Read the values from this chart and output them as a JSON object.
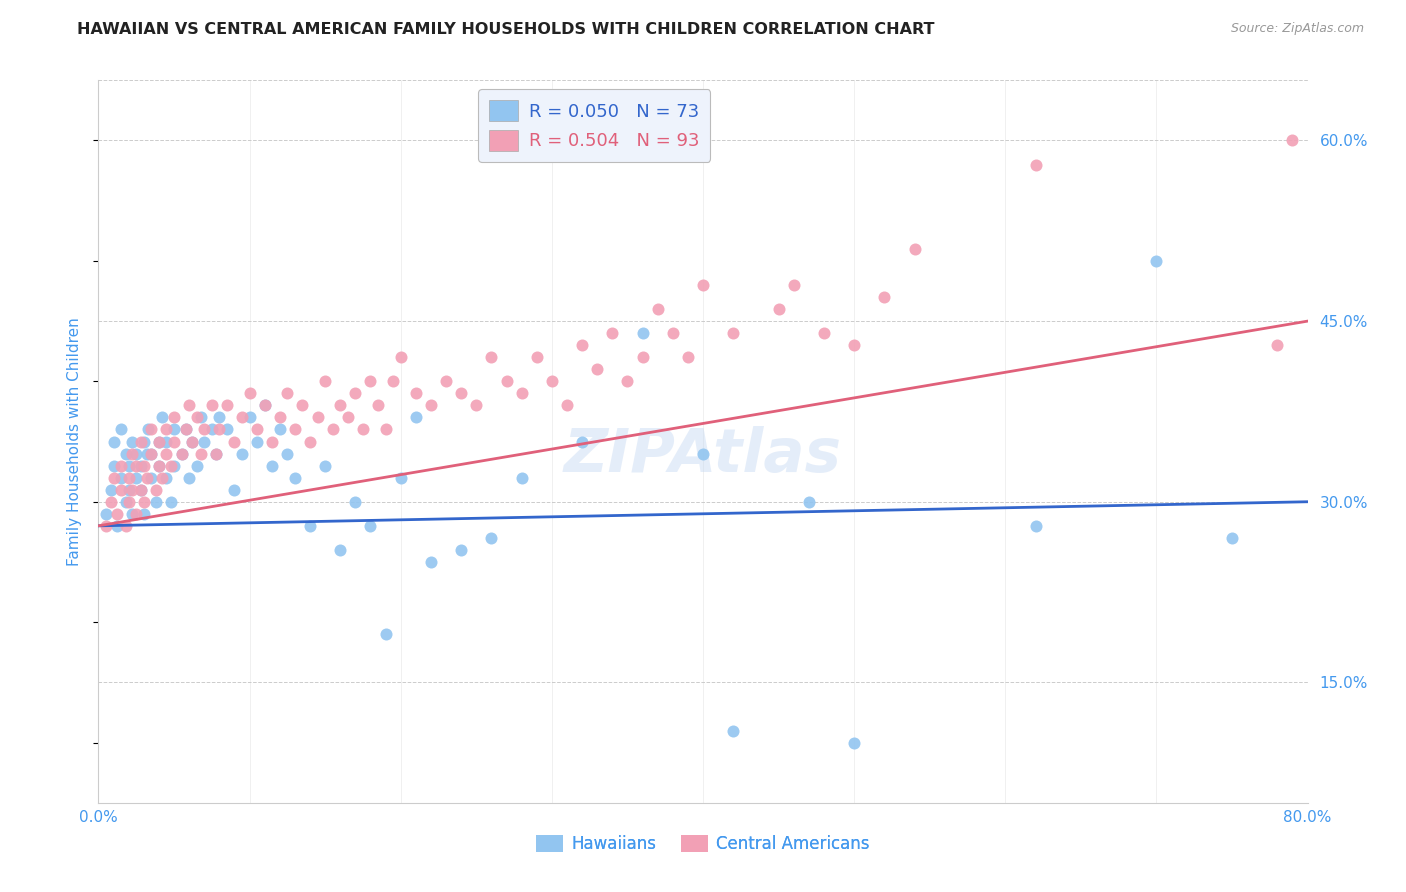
{
  "title": "HAWAIIAN VS CENTRAL AMERICAN FAMILY HOUSEHOLDS WITH CHILDREN CORRELATION CHART",
  "source": "Source: ZipAtlas.com",
  "ylabel": "Family Households with Children",
  "xlim": [
    0.0,
    0.8
  ],
  "ylim": [
    0.05,
    0.65
  ],
  "xticks": [
    0.0,
    0.1,
    0.2,
    0.3,
    0.4,
    0.5,
    0.6,
    0.7,
    0.8
  ],
  "yticks_right": [
    0.15,
    0.3,
    0.45,
    0.6
  ],
  "ytick_labels_right": [
    "15.0%",
    "30.0%",
    "45.0%",
    "60.0%"
  ],
  "xtick_labels": [
    "0.0%",
    "",
    "",
    "",
    "",
    "",
    "",
    "",
    "80.0%"
  ],
  "hawaiian_R": 0.05,
  "hawaiian_N": 73,
  "central_R": 0.504,
  "central_N": 93,
  "hawaiian_color": "#92C5F0",
  "central_color": "#F2A0B5",
  "hawaiian_line_color": "#3366CC",
  "central_line_color": "#E0607A",
  "grid_color": "#CCCCCC",
  "axis_color": "#4499EE",
  "hawaiian_x": [
    0.005,
    0.008,
    0.01,
    0.01,
    0.012,
    0.015,
    0.015,
    0.018,
    0.018,
    0.02,
    0.02,
    0.022,
    0.022,
    0.025,
    0.025,
    0.028,
    0.028,
    0.03,
    0.03,
    0.032,
    0.033,
    0.035,
    0.035,
    0.038,
    0.04,
    0.04,
    0.042,
    0.045,
    0.045,
    0.048,
    0.05,
    0.05,
    0.055,
    0.058,
    0.06,
    0.062,
    0.065,
    0.068,
    0.07,
    0.075,
    0.078,
    0.08,
    0.085,
    0.09,
    0.095,
    0.1,
    0.105,
    0.11,
    0.115,
    0.12,
    0.125,
    0.13,
    0.14,
    0.15,
    0.16,
    0.17,
    0.18,
    0.19,
    0.2,
    0.21,
    0.22,
    0.24,
    0.26,
    0.28,
    0.32,
    0.36,
    0.4,
    0.42,
    0.47,
    0.5,
    0.62,
    0.7,
    0.75
  ],
  "hawaiian_y": [
    0.29,
    0.31,
    0.33,
    0.35,
    0.28,
    0.32,
    0.36,
    0.3,
    0.34,
    0.31,
    0.33,
    0.35,
    0.29,
    0.32,
    0.34,
    0.31,
    0.33,
    0.35,
    0.29,
    0.34,
    0.36,
    0.32,
    0.34,
    0.3,
    0.33,
    0.35,
    0.37,
    0.32,
    0.35,
    0.3,
    0.33,
    0.36,
    0.34,
    0.36,
    0.32,
    0.35,
    0.33,
    0.37,
    0.35,
    0.36,
    0.34,
    0.37,
    0.36,
    0.31,
    0.34,
    0.37,
    0.35,
    0.38,
    0.33,
    0.36,
    0.34,
    0.32,
    0.28,
    0.33,
    0.26,
    0.3,
    0.28,
    0.19,
    0.32,
    0.37,
    0.25,
    0.26,
    0.27,
    0.32,
    0.35,
    0.44,
    0.34,
    0.11,
    0.3,
    0.1,
    0.28,
    0.5,
    0.27
  ],
  "central_x": [
    0.005,
    0.008,
    0.01,
    0.012,
    0.015,
    0.015,
    0.018,
    0.02,
    0.02,
    0.022,
    0.022,
    0.025,
    0.025,
    0.028,
    0.028,
    0.03,
    0.03,
    0.032,
    0.035,
    0.035,
    0.038,
    0.04,
    0.04,
    0.042,
    0.045,
    0.045,
    0.048,
    0.05,
    0.05,
    0.055,
    0.058,
    0.06,
    0.062,
    0.065,
    0.068,
    0.07,
    0.075,
    0.078,
    0.08,
    0.085,
    0.09,
    0.095,
    0.1,
    0.105,
    0.11,
    0.115,
    0.12,
    0.125,
    0.13,
    0.135,
    0.14,
    0.145,
    0.15,
    0.155,
    0.16,
    0.165,
    0.17,
    0.175,
    0.18,
    0.185,
    0.19,
    0.195,
    0.2,
    0.21,
    0.22,
    0.23,
    0.24,
    0.25,
    0.26,
    0.27,
    0.28,
    0.29,
    0.3,
    0.31,
    0.32,
    0.33,
    0.34,
    0.35,
    0.36,
    0.37,
    0.38,
    0.39,
    0.4,
    0.42,
    0.45,
    0.46,
    0.48,
    0.5,
    0.52,
    0.54,
    0.62,
    0.78,
    0.79
  ],
  "central_y": [
    0.28,
    0.3,
    0.32,
    0.29,
    0.31,
    0.33,
    0.28,
    0.3,
    0.32,
    0.34,
    0.31,
    0.29,
    0.33,
    0.35,
    0.31,
    0.33,
    0.3,
    0.32,
    0.34,
    0.36,
    0.31,
    0.33,
    0.35,
    0.32,
    0.34,
    0.36,
    0.33,
    0.35,
    0.37,
    0.34,
    0.36,
    0.38,
    0.35,
    0.37,
    0.34,
    0.36,
    0.38,
    0.34,
    0.36,
    0.38,
    0.35,
    0.37,
    0.39,
    0.36,
    0.38,
    0.35,
    0.37,
    0.39,
    0.36,
    0.38,
    0.35,
    0.37,
    0.4,
    0.36,
    0.38,
    0.37,
    0.39,
    0.36,
    0.4,
    0.38,
    0.36,
    0.4,
    0.42,
    0.39,
    0.38,
    0.4,
    0.39,
    0.38,
    0.42,
    0.4,
    0.39,
    0.42,
    0.4,
    0.38,
    0.43,
    0.41,
    0.44,
    0.4,
    0.42,
    0.46,
    0.44,
    0.42,
    0.48,
    0.44,
    0.46,
    0.48,
    0.44,
    0.43,
    0.47,
    0.51,
    0.58,
    0.43,
    0.6
  ],
  "hawaiian_trendline": [
    0.28,
    0.3
  ],
  "central_trendline": [
    0.28,
    0.45
  ]
}
